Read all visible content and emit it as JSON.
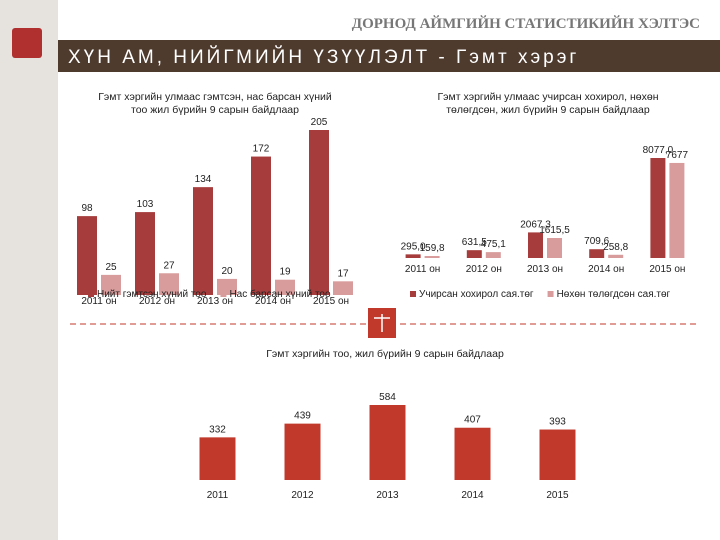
{
  "header": {
    "org": "ДОРНОД АЙМГИЙН СТАТИСТИКИЙН ХЭЛТЭС",
    "title": "ХҮН АМ, НИЙГМИЙН ҮЗҮҮЛЭЛТ - Гэмт хэрэг"
  },
  "chart_data": [
    {
      "type": "bar",
      "title": "Гэмт хэргийн улмаас гэмтсэн, нас барсан хүний тоо жил бүрийн 9 сарын байдлаар",
      "categories": [
        "2011 он",
        "2012 он",
        "2013 он",
        "2014 он",
        "2015 он"
      ],
      "series": [
        {
          "name": "Нийт гэмтсэн хүний тоо",
          "color": "#a63c3c",
          "values": [
            98,
            103,
            134,
            172,
            205
          ]
        },
        {
          "name": "Нас барсан хүний тоо",
          "color": "#d99c9c",
          "values": [
            25,
            27,
            20,
            19,
            17
          ]
        }
      ]
    },
    {
      "type": "bar",
      "title": "Гэмт хэргийн улмаас учирсан хохирол, нөхөн төлөгдсөн, жил бүрийн 9 сарын байдлаар",
      "categories": [
        "2011 он",
        "2012 он",
        "2013 он",
        "2014 он",
        "2015 он"
      ],
      "series": [
        {
          "name": "Учирсан хохирол сая.төг",
          "color": "#a63c3c",
          "values": [
            295.0,
            631.5,
            2067.3,
            709.6,
            8077.0
          ],
          "value_labels": [
            "295,0",
            "631,5",
            "2067,3",
            "709,6",
            "8077,0"
          ]
        },
        {
          "name": "Нөхөн төлөгдсөн сая.төг",
          "color": "#d99c9c",
          "values": [
            159.8,
            475.1,
            1615.5,
            258.8,
            7677
          ],
          "value_labels": [
            "159,8",
            "475,1",
            "1615,5",
            "258,8",
            "7677"
          ]
        }
      ]
    },
    {
      "type": "bar",
      "title": "Гэмт хэргийн тоо, жил бүрийн 9 сарын байдлаар",
      "categories": [
        "2011",
        "2012",
        "2013",
        "2014",
        "2015"
      ],
      "series": [
        {
          "color": "#c0392b",
          "values": [
            332,
            439,
            584,
            407,
            393
          ]
        }
      ]
    }
  ]
}
